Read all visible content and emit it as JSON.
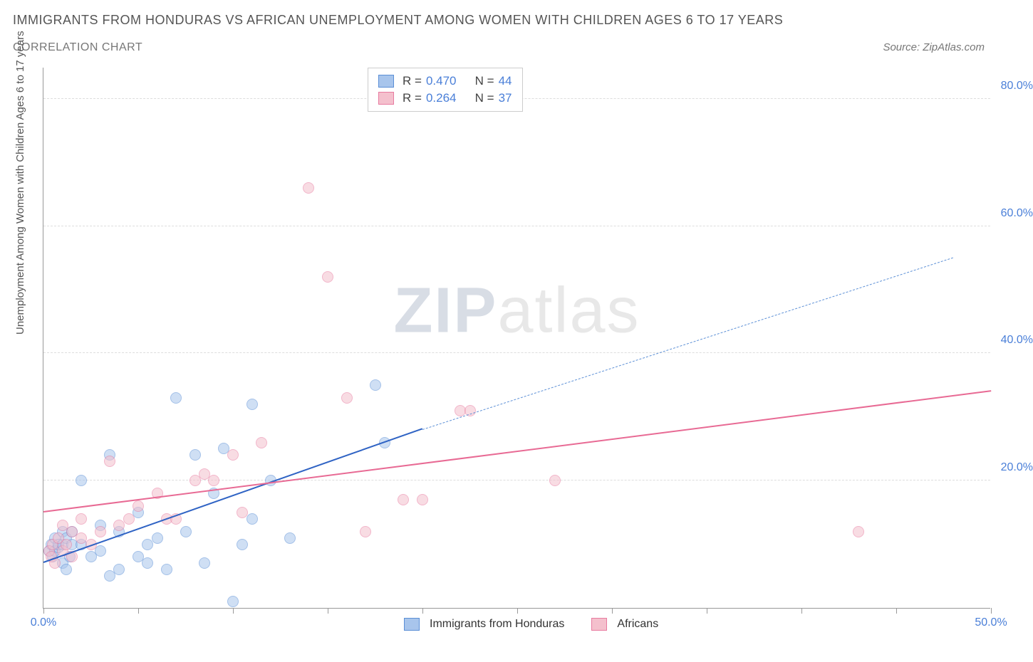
{
  "title": "IMMIGRANTS FROM HONDURAS VS AFRICAN UNEMPLOYMENT AMONG WOMEN WITH CHILDREN AGES 6 TO 17 YEARS",
  "subtitle": "CORRELATION CHART",
  "source": "Source: ZipAtlas.com",
  "ylabel": "Unemployment Among Women with Children Ages 6 to 17 years",
  "watermark_a": "ZIP",
  "watermark_b": "atlas",
  "chart": {
    "type": "scatter",
    "xlim": [
      0,
      50
    ],
    "ylim": [
      0,
      85
    ],
    "xtick_positions": [
      0,
      5,
      10,
      15,
      20,
      25,
      30,
      35,
      40,
      45,
      50
    ],
    "xtick_labels": {
      "0": "0.0%",
      "50": "50.0%"
    },
    "ytick_positions": [
      20,
      40,
      60,
      80
    ],
    "ytick_labels": [
      "20.0%",
      "40.0%",
      "60.0%",
      "80.0%"
    ],
    "background_color": "#ffffff",
    "grid_color": "#dddddd",
    "axis_color": "#999999",
    "tick_label_color": "#4a7fd8",
    "point_radius": 8,
    "point_opacity": 0.55,
    "series": [
      {
        "name": "Immigrants from Honduras",
        "color_fill": "#a8c5ec",
        "color_stroke": "#5b8fd6",
        "R": "0.470",
        "N": "44",
        "points": [
          [
            0.3,
            9
          ],
          [
            0.4,
            10
          ],
          [
            0.5,
            8
          ],
          [
            0.6,
            11
          ],
          [
            0.6,
            9
          ],
          [
            0.8,
            9.5
          ],
          [
            0.8,
            10
          ],
          [
            1,
            7
          ],
          [
            1,
            12
          ],
          [
            1,
            10
          ],
          [
            1.2,
            11
          ],
          [
            1.2,
            6
          ],
          [
            1.4,
            8
          ],
          [
            1.5,
            12
          ],
          [
            1.5,
            10
          ],
          [
            2,
            10
          ],
          [
            2,
            20
          ],
          [
            2.5,
            8
          ],
          [
            3,
            9
          ],
          [
            3,
            13
          ],
          [
            3.5,
            5
          ],
          [
            3.5,
            24
          ],
          [
            4,
            6
          ],
          [
            4,
            12
          ],
          [
            5,
            15
          ],
          [
            5,
            8
          ],
          [
            5.5,
            7
          ],
          [
            5.5,
            10
          ],
          [
            6,
            11
          ],
          [
            6.5,
            6
          ],
          [
            7,
            33
          ],
          [
            7.5,
            12
          ],
          [
            8,
            24
          ],
          [
            8.5,
            7
          ],
          [
            9,
            18
          ],
          [
            9.5,
            25
          ],
          [
            10,
            1
          ],
          [
            10.5,
            10
          ],
          [
            11,
            32
          ],
          [
            11,
            14
          ],
          [
            12,
            20
          ],
          [
            13,
            11
          ],
          [
            17.5,
            35
          ],
          [
            18,
            26
          ]
        ],
        "trend": {
          "x1": 0,
          "y1": 7,
          "x2": 20,
          "y2": 28,
          "color": "#2f63c4",
          "width": 2.5,
          "dash": false
        },
        "trend_ext": {
          "x1": 20,
          "y1": 28,
          "x2": 48,
          "y2": 55,
          "color": "#5b8fd6",
          "width": 1.5,
          "dash": true
        }
      },
      {
        "name": "Africans",
        "color_fill": "#f4c0cd",
        "color_stroke": "#e87ba0",
        "R": "0.264",
        "N": "37",
        "points": [
          [
            0.3,
            9
          ],
          [
            0.4,
            8
          ],
          [
            0.5,
            10
          ],
          [
            0.6,
            7
          ],
          [
            0.8,
            11
          ],
          [
            1,
            13
          ],
          [
            1,
            9
          ],
          [
            1.2,
            10
          ],
          [
            1.5,
            12
          ],
          [
            1.5,
            8
          ],
          [
            2,
            14
          ],
          [
            2,
            11
          ],
          [
            2.5,
            10
          ],
          [
            3,
            12
          ],
          [
            3.5,
            23
          ],
          [
            4,
            13
          ],
          [
            4.5,
            14
          ],
          [
            5,
            16
          ],
          [
            6,
            18
          ],
          [
            6.5,
            14
          ],
          [
            7,
            14
          ],
          [
            8,
            20
          ],
          [
            8.5,
            21
          ],
          [
            9,
            20
          ],
          [
            10,
            24
          ],
          [
            10.5,
            15
          ],
          [
            11.5,
            26
          ],
          [
            14,
            66
          ],
          [
            15,
            52
          ],
          [
            16,
            33
          ],
          [
            17,
            12
          ],
          [
            19,
            17
          ],
          [
            20,
            17
          ],
          [
            22,
            31
          ],
          [
            22.5,
            31
          ],
          [
            27,
            20
          ],
          [
            43,
            12
          ]
        ],
        "trend": {
          "x1": 0,
          "y1": 15,
          "x2": 50,
          "y2": 34,
          "color": "#e86a94",
          "width": 2.5,
          "dash": false
        }
      }
    ]
  },
  "legend_top": {
    "r_label": "R =",
    "n_label": "N ="
  }
}
